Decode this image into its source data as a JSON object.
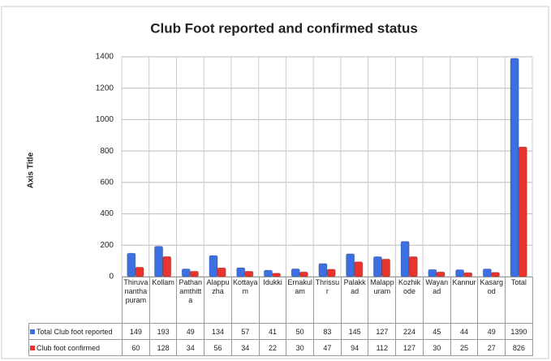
{
  "chart_data": {
    "type": "bar",
    "title": "Club Foot reported and confirmed status",
    "y_label": "Axis Title",
    "categories": [
      "Thiruvananthapuram",
      "Kollam",
      "Pathanamthitta",
      "Alappuzha",
      "Kottayam",
      "Idukki",
      "Ernakulam",
      "Thrissur",
      "Palakkad",
      "Malappuram",
      "Kozhikode",
      "Wayanad",
      "Kannur",
      "Kasargod",
      "Total"
    ],
    "series": [
      {
        "name": "Total Club foot reported",
        "color": "#3b6fe2",
        "values": [
          149,
          193,
          49,
          134,
          57,
          41,
          50,
          83,
          145,
          127,
          224,
          45,
          44,
          49,
          1390
        ]
      },
      {
        "name": "Club foot confirmed",
        "color": "#e8342c",
        "values": [
          60,
          128,
          34,
          56,
          34,
          22,
          30,
          47,
          94,
          112,
          127,
          30,
          25,
          27,
          826
        ]
      }
    ],
    "ylim": [
      0,
      1400
    ],
    "yticks": [
      0,
      200,
      400,
      600,
      800,
      1000,
      1200,
      1400
    ],
    "grid": true
  }
}
